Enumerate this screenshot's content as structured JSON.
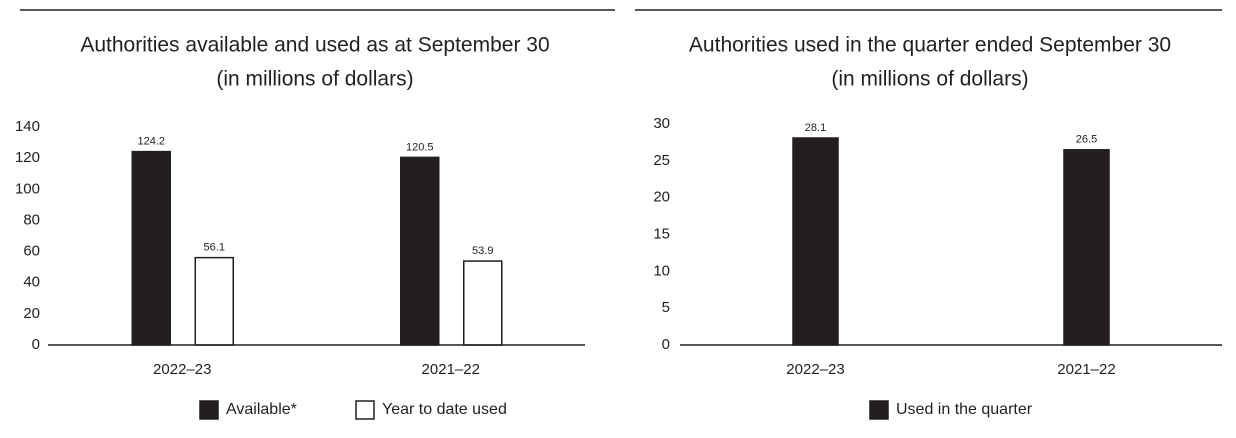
{
  "chart_data": [
    {
      "type": "bar",
      "title": "Authorities available and used as at September 30",
      "subtitle": "(in millions of dollars)",
      "categories": [
        "2022–23",
        "2021–22"
      ],
      "series": [
        {
          "name": "Available*",
          "color": "#231f20",
          "values": [
            124.2,
            120.5
          ]
        },
        {
          "name": "Year to date used",
          "color": "#ffffff",
          "values": [
            56.1,
            53.9
          ]
        }
      ],
      "ylim": [
        0,
        140
      ],
      "yticks": [
        0,
        20,
        40,
        60,
        80,
        100,
        120,
        140
      ],
      "grid": false,
      "legend": "bottom"
    },
    {
      "type": "bar",
      "title": "Authorities used in the quarter ended September 30",
      "subtitle": "(in millions of dollars)",
      "categories": [
        "2022–23",
        "2021–22"
      ],
      "series": [
        {
          "name": "Used in the quarter",
          "color": "#231f20",
          "values": [
            28.1,
            26.5
          ]
        }
      ],
      "ylim": [
        0,
        30
      ],
      "yticks": [
        0,
        5,
        10,
        15,
        20,
        25,
        30
      ],
      "grid": false,
      "legend": "bottom"
    }
  ]
}
